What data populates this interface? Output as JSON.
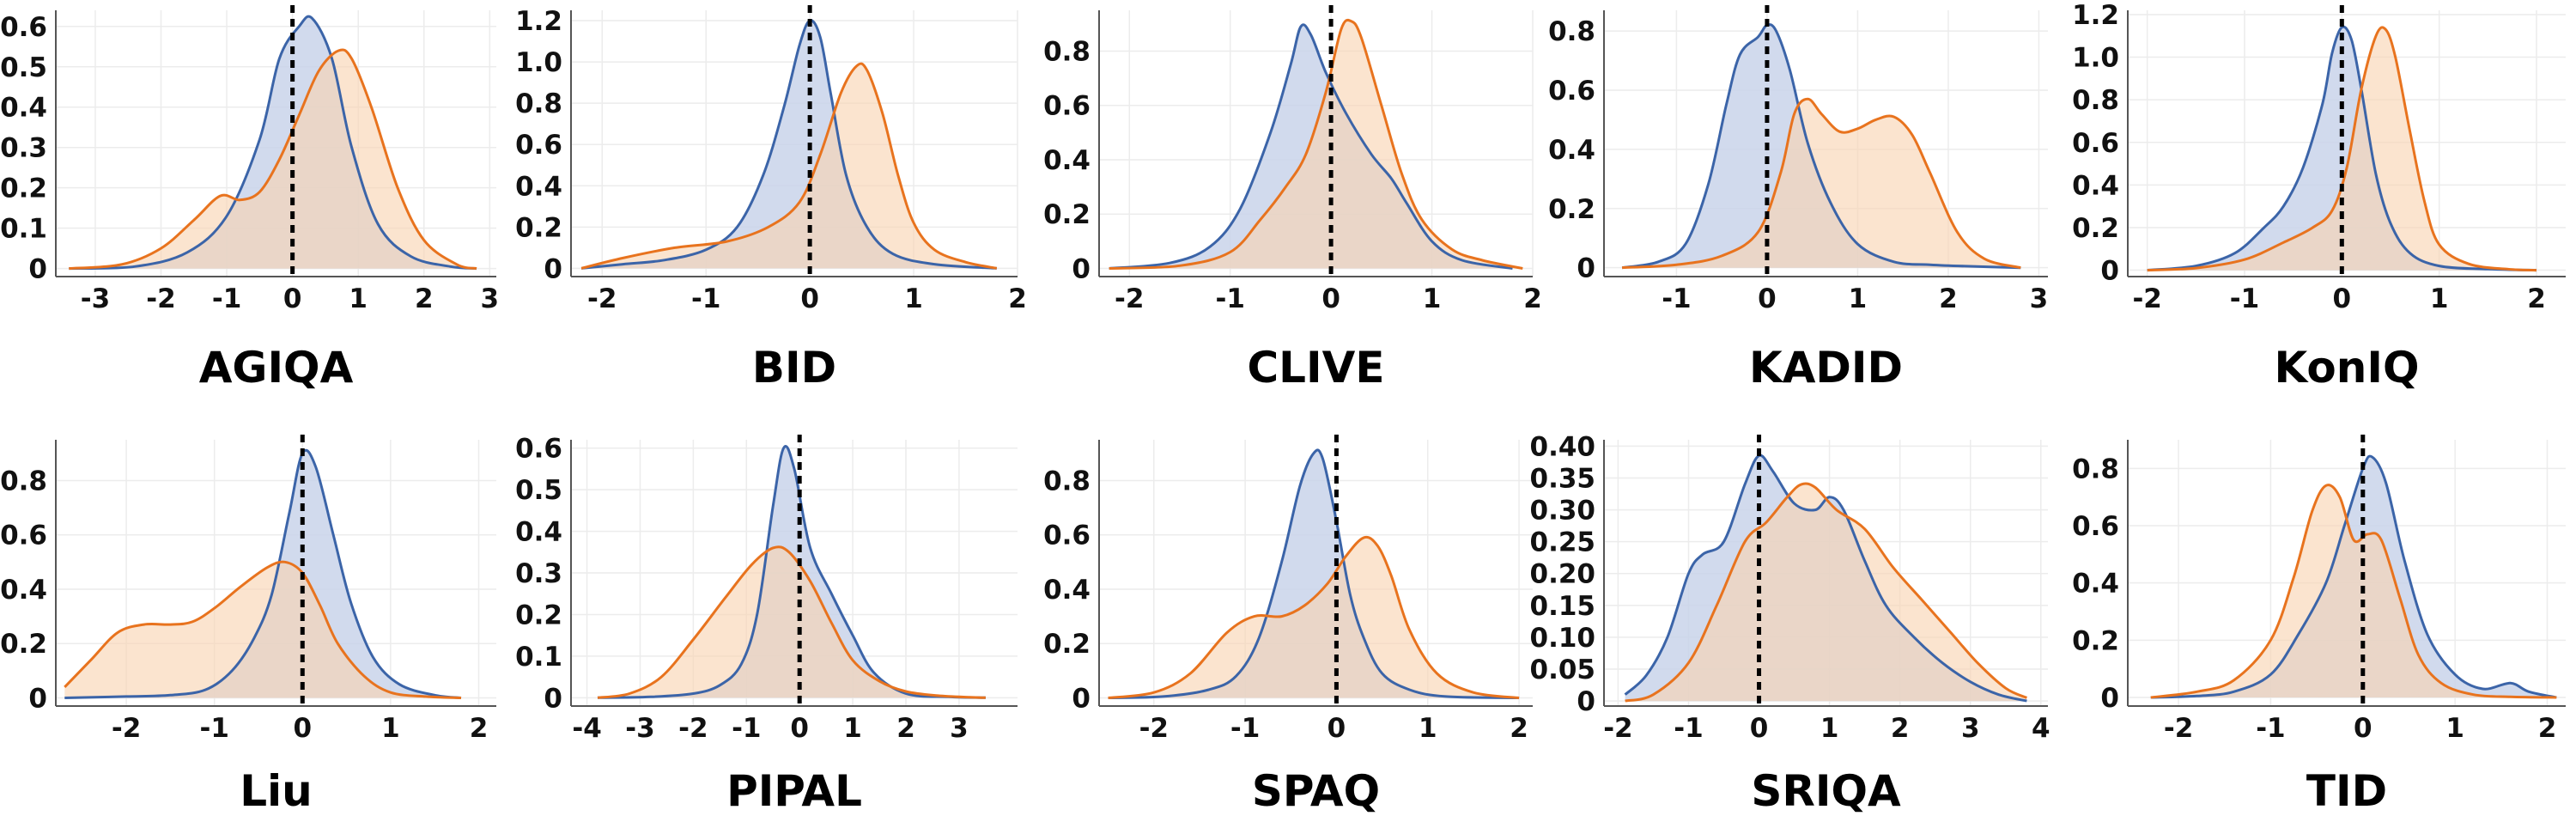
{
  "colors": {
    "blue": "#3b64a8",
    "blue_fill": "#c9d4ea",
    "orange": "#e8731e",
    "orange_fill": "#f8d3b2",
    "overlap": "#c6aca0"
  },
  "chart_data": [
    {
      "type": "area",
      "title": "AGIQA",
      "xlim": [
        -3.6,
        3.1
      ],
      "ylim": [
        -0.02,
        0.64
      ],
      "xticks": [
        -3,
        -2,
        -1,
        0,
        1,
        2,
        3
      ],
      "yticks": [
        0,
        0.1,
        0.2,
        0.3,
        0.4,
        0.5,
        0.6
      ],
      "ytick_labels": [
        "0",
        "0.1",
        "0.2",
        "0.3",
        "0.4",
        "0.5",
        "0.6"
      ],
      "blue": {
        "x": [
          -3.4,
          -2.4,
          -1.6,
          -1.0,
          -0.5,
          -0.2,
          0.1,
          0.3,
          0.6,
          0.9,
          1.3,
          1.8,
          2.4,
          2.8
        ],
        "y": [
          0,
          0.005,
          0.04,
          0.13,
          0.32,
          0.52,
          0.6,
          0.62,
          0.52,
          0.3,
          0.11,
          0.03,
          0.005,
          0
        ]
      },
      "orange": {
        "x": [
          -3.4,
          -2.6,
          -2.0,
          -1.5,
          -1.1,
          -0.8,
          -0.5,
          -0.2,
          0.1,
          0.4,
          0.7,
          0.9,
          1.2,
          1.6,
          2.0,
          2.5,
          2.8
        ],
        "y": [
          0,
          0.01,
          0.05,
          0.12,
          0.18,
          0.17,
          0.19,
          0.27,
          0.38,
          0.49,
          0.54,
          0.52,
          0.4,
          0.2,
          0.07,
          0.01,
          0
        ]
      }
    },
    {
      "type": "area",
      "title": "BID",
      "xlim": [
        -2.3,
        2.0
      ],
      "ylim": [
        -0.04,
        1.25
      ],
      "xticks": [
        -2,
        -1,
        0,
        1,
        2
      ],
      "yticks": [
        0,
        0.2,
        0.4,
        0.6,
        0.8,
        1.0,
        1.2
      ],
      "ytick_labels": [
        "0",
        "0.2",
        "0.4",
        "0.6",
        "0.8",
        "1.0",
        "1.2"
      ],
      "blue": {
        "x": [
          -2.2,
          -1.8,
          -1.4,
          -1.0,
          -0.7,
          -0.45,
          -0.25,
          -0.1,
          0.0,
          0.1,
          0.2,
          0.35,
          0.55,
          0.8,
          1.2,
          1.8
        ],
        "y": [
          0,
          0.02,
          0.04,
          0.09,
          0.2,
          0.45,
          0.78,
          1.08,
          1.2,
          1.12,
          0.85,
          0.45,
          0.2,
          0.07,
          0.02,
          0
        ]
      },
      "orange": {
        "x": [
          -2.2,
          -1.8,
          -1.3,
          -0.8,
          -0.4,
          -0.1,
          0.1,
          0.3,
          0.45,
          0.55,
          0.7,
          0.85,
          1.0,
          1.2,
          1.5,
          1.8
        ],
        "y": [
          0,
          0.05,
          0.1,
          0.13,
          0.2,
          0.32,
          0.55,
          0.85,
          0.98,
          0.96,
          0.75,
          0.45,
          0.22,
          0.09,
          0.03,
          0
        ]
      }
    },
    {
      "type": "area",
      "title": "CLIVE",
      "xlim": [
        -2.3,
        2.0
      ],
      "ylim": [
        -0.03,
        0.95
      ],
      "xticks": [
        -2,
        -1,
        0,
        1,
        2
      ],
      "yticks": [
        0,
        0.2,
        0.4,
        0.6,
        0.8
      ],
      "ytick_labels": [
        "0",
        "0.2",
        "0.4",
        "0.6",
        "0.8"
      ],
      "blue": {
        "x": [
          -2.2,
          -1.6,
          -1.2,
          -0.9,
          -0.6,
          -0.4,
          -0.3,
          -0.2,
          -0.05,
          0.15,
          0.4,
          0.6,
          0.75,
          1.0,
          1.3,
          1.8
        ],
        "y": [
          0,
          0.02,
          0.08,
          0.22,
          0.5,
          0.75,
          0.89,
          0.86,
          0.72,
          0.57,
          0.42,
          0.33,
          0.24,
          0.1,
          0.03,
          0
        ]
      },
      "orange": {
        "x": [
          -2.2,
          -1.5,
          -1.0,
          -0.7,
          -0.45,
          -0.25,
          -0.05,
          0.1,
          0.2,
          0.3,
          0.5,
          0.7,
          0.9,
          1.2,
          1.5,
          1.9
        ],
        "y": [
          0,
          0.01,
          0.06,
          0.18,
          0.3,
          0.42,
          0.65,
          0.88,
          0.91,
          0.85,
          0.6,
          0.35,
          0.18,
          0.07,
          0.03,
          0
        ]
      }
    },
    {
      "type": "area",
      "title": "KADID",
      "xlim": [
        -1.8,
        3.1
      ],
      "ylim": [
        -0.03,
        0.87
      ],
      "xticks": [
        -1,
        0,
        1,
        2,
        3
      ],
      "yticks": [
        0,
        0.2,
        0.4,
        0.6,
        0.8
      ],
      "ytick_labels": [
        "0",
        "0.2",
        "0.4",
        "0.6",
        "0.8"
      ],
      "blue": {
        "x": [
          -1.6,
          -1.2,
          -0.9,
          -0.65,
          -0.45,
          -0.3,
          -0.1,
          0.0,
          0.1,
          0.25,
          0.45,
          0.7,
          1.0,
          1.4,
          1.8,
          2.2,
          2.8
        ],
        "y": [
          0,
          0.02,
          0.08,
          0.28,
          0.55,
          0.72,
          0.78,
          0.82,
          0.8,
          0.67,
          0.42,
          0.22,
          0.08,
          0.02,
          0.01,
          0.005,
          0
        ]
      },
      "orange": {
        "x": [
          -1.6,
          -1.0,
          -0.5,
          -0.1,
          0.15,
          0.3,
          0.45,
          0.6,
          0.8,
          1.0,
          1.2,
          1.4,
          1.6,
          1.8,
          2.1,
          2.4,
          2.8
        ],
        "y": [
          0,
          0.01,
          0.04,
          0.12,
          0.32,
          0.52,
          0.57,
          0.52,
          0.46,
          0.47,
          0.5,
          0.51,
          0.45,
          0.32,
          0.12,
          0.03,
          0
        ]
      }
    },
    {
      "type": "area",
      "title": "KonIQ",
      "xlim": [
        -2.2,
        2.3
      ],
      "ylim": [
        -0.03,
        1.22
      ],
      "xticks": [
        -2,
        -1,
        0,
        1,
        2
      ],
      "yticks": [
        0,
        0.2,
        0.4,
        0.6,
        0.8,
        1.0,
        1.2
      ],
      "ytick_labels": [
        "0",
        "0.2",
        "0.4",
        "0.6",
        "0.8",
        "1.0",
        "1.2"
      ],
      "blue": {
        "x": [
          -2.0,
          -1.5,
          -1.1,
          -0.8,
          -0.6,
          -0.4,
          -0.2,
          -0.1,
          0.0,
          0.1,
          0.2,
          0.35,
          0.5,
          0.7,
          1.0,
          1.5,
          2.0
        ],
        "y": [
          0,
          0.02,
          0.08,
          0.2,
          0.3,
          0.48,
          0.78,
          1.02,
          1.14,
          1.08,
          0.85,
          0.45,
          0.22,
          0.08,
          0.02,
          0.005,
          0
        ]
      },
      "orange": {
        "x": [
          -2.0,
          -1.5,
          -1.0,
          -0.6,
          -0.3,
          -0.1,
          0.05,
          0.2,
          0.35,
          0.45,
          0.55,
          0.7,
          0.85,
          1.0,
          1.3,
          1.7,
          2.0
        ],
        "y": [
          0,
          0.01,
          0.05,
          0.13,
          0.2,
          0.28,
          0.48,
          0.85,
          1.1,
          1.13,
          1.0,
          0.65,
          0.32,
          0.12,
          0.03,
          0.005,
          0
        ]
      }
    },
    {
      "type": "area",
      "title": "Liu",
      "xlim": [
        -2.8,
        2.2
      ],
      "ylim": [
        -0.03,
        0.95
      ],
      "xticks": [
        -2,
        -1,
        0,
        1,
        2
      ],
      "yticks": [
        0,
        0.2,
        0.4,
        0.6,
        0.8
      ],
      "ytick_labels": [
        "0",
        "0.2",
        "0.4",
        "0.6",
        "0.8"
      ],
      "blue": {
        "x": [
          -2.7,
          -2.0,
          -1.5,
          -1.1,
          -0.8,
          -0.55,
          -0.35,
          -0.15,
          0.0,
          0.15,
          0.35,
          0.55,
          0.8,
          1.1,
          1.5,
          1.8
        ],
        "y": [
          0,
          0.005,
          0.01,
          0.03,
          0.1,
          0.22,
          0.38,
          0.68,
          0.9,
          0.85,
          0.6,
          0.35,
          0.15,
          0.05,
          0.01,
          0
        ]
      },
      "orange": {
        "x": [
          -2.7,
          -2.4,
          -2.1,
          -1.8,
          -1.5,
          -1.25,
          -1.0,
          -0.7,
          -0.4,
          -0.2,
          0.0,
          0.2,
          0.4,
          0.7,
          1.0,
          1.4,
          1.8
        ],
        "y": [
          0.04,
          0.14,
          0.24,
          0.27,
          0.27,
          0.28,
          0.33,
          0.41,
          0.48,
          0.5,
          0.46,
          0.34,
          0.2,
          0.08,
          0.02,
          0.005,
          0
        ]
      }
    },
    {
      "type": "area",
      "title": "PIPAL",
      "xlim": [
        -4.3,
        4.1
      ],
      "ylim": [
        -0.02,
        0.62
      ],
      "xticks": [
        -4,
        -3,
        -2,
        -1,
        0,
        1,
        2,
        3
      ],
      "yticks": [
        0,
        0.1,
        0.2,
        0.3,
        0.4,
        0.5,
        0.6
      ],
      "ytick_labels": [
        "0",
        "0.1",
        "0.2",
        "0.3",
        "0.4",
        "0.5",
        "0.6"
      ],
      "blue": {
        "x": [
          -3.8,
          -2.8,
          -2.0,
          -1.5,
          -1.1,
          -0.8,
          -0.5,
          -0.3,
          -0.1,
          0.2,
          0.6,
          1.0,
          1.4,
          2.0,
          2.8,
          3.5
        ],
        "y": [
          0,
          0.002,
          0.01,
          0.03,
          0.08,
          0.2,
          0.46,
          0.6,
          0.55,
          0.36,
          0.25,
          0.15,
          0.06,
          0.01,
          0.002,
          0
        ]
      },
      "orange": {
        "x": [
          -3.8,
          -3.2,
          -2.6,
          -2.0,
          -1.4,
          -0.9,
          -0.5,
          -0.2,
          0.2,
          0.6,
          1.0,
          1.5,
          2.0,
          2.6,
          3.2,
          3.5
        ],
        "y": [
          0,
          0.01,
          0.05,
          0.14,
          0.24,
          0.32,
          0.36,
          0.35,
          0.28,
          0.18,
          0.09,
          0.04,
          0.015,
          0.005,
          0.001,
          0
        ]
      }
    },
    {
      "type": "area",
      "title": "SPAQ",
      "xlim": [
        -2.6,
        2.15
      ],
      "ylim": [
        -0.03,
        0.95
      ],
      "xticks": [
        -2,
        -1,
        0,
        1,
        2
      ],
      "yticks": [
        0,
        0.2,
        0.4,
        0.6,
        0.8
      ],
      "ytick_labels": [
        "0",
        "0.2",
        "0.4",
        "0.6",
        "0.8"
      ],
      "blue": {
        "x": [
          -2.5,
          -1.9,
          -1.4,
          -1.1,
          -0.85,
          -0.6,
          -0.4,
          -0.25,
          -0.15,
          0.0,
          0.15,
          0.3,
          0.5,
          0.8,
          1.2,
          2.0
        ],
        "y": [
          0,
          0.005,
          0.03,
          0.08,
          0.22,
          0.5,
          0.78,
          0.9,
          0.88,
          0.65,
          0.38,
          0.22,
          0.09,
          0.03,
          0.005,
          0
        ]
      },
      "orange": {
        "x": [
          -2.5,
          -2.0,
          -1.6,
          -1.2,
          -0.9,
          -0.6,
          -0.35,
          -0.1,
          0.1,
          0.3,
          0.45,
          0.6,
          0.8,
          1.1,
          1.5,
          2.0
        ],
        "y": [
          0,
          0.02,
          0.09,
          0.24,
          0.3,
          0.3,
          0.34,
          0.42,
          0.52,
          0.59,
          0.56,
          0.45,
          0.25,
          0.09,
          0.02,
          0
        ]
      }
    },
    {
      "type": "area",
      "title": "SRIQA",
      "xlim": [
        -2.2,
        4.1
      ],
      "ylim": [
        -0.008,
        0.41
      ],
      "xticks": [
        -2,
        -1,
        0,
        1,
        2,
        3,
        4
      ],
      "yticks": [
        0,
        0.05,
        0.1,
        0.15,
        0.2,
        0.25,
        0.3,
        0.35,
        0.4
      ],
      "ytick_labels": [
        "0",
        "0.05",
        "0.10",
        "0.15",
        "0.20",
        "0.25",
        "0.30",
        "0.35",
        "0.40"
      ],
      "blue": {
        "x": [
          -1.9,
          -1.6,
          -1.3,
          -1.0,
          -0.8,
          -0.5,
          -0.2,
          0.0,
          0.2,
          0.5,
          0.8,
          1.0,
          1.2,
          1.5,
          1.8,
          2.2,
          2.6,
          3.0,
          3.4,
          3.8
        ],
        "y": [
          0.01,
          0.04,
          0.1,
          0.2,
          0.23,
          0.25,
          0.34,
          0.385,
          0.36,
          0.31,
          0.3,
          0.32,
          0.3,
          0.22,
          0.15,
          0.1,
          0.06,
          0.03,
          0.01,
          0
        ]
      },
      "orange": {
        "x": [
          -1.9,
          -1.5,
          -1.0,
          -0.6,
          -0.2,
          0.1,
          0.4,
          0.6,
          0.8,
          1.1,
          1.5,
          1.9,
          2.3,
          2.7,
          3.1,
          3.5,
          3.8
        ],
        "y": [
          0,
          0.01,
          0.06,
          0.15,
          0.25,
          0.28,
          0.32,
          0.34,
          0.335,
          0.3,
          0.27,
          0.21,
          0.16,
          0.11,
          0.06,
          0.02,
          0.005
        ]
      }
    },
    {
      "type": "area",
      "title": "TID",
      "xlim": [
        -2.55,
        2.2
      ],
      "ylim": [
        -0.03,
        0.9
      ],
      "xticks": [
        -2,
        -1,
        0,
        1,
        2
      ],
      "yticks": [
        0,
        0.2,
        0.4,
        0.6,
        0.8
      ],
      "ytick_labels": [
        "0",
        "0.2",
        "0.4",
        "0.6",
        "0.8"
      ],
      "blue": {
        "x": [
          -2.3,
          -1.8,
          -1.4,
          -1.0,
          -0.7,
          -0.4,
          -0.2,
          0.0,
          0.1,
          0.25,
          0.45,
          0.7,
          1.0,
          1.3,
          1.6,
          1.8,
          2.1
        ],
        "y": [
          0,
          0.005,
          0.02,
          0.08,
          0.22,
          0.4,
          0.6,
          0.8,
          0.84,
          0.75,
          0.48,
          0.22,
          0.08,
          0.03,
          0.05,
          0.02,
          0
        ]
      },
      "orange": {
        "x": [
          -2.3,
          -1.8,
          -1.4,
          -1.0,
          -0.75,
          -0.55,
          -0.4,
          -0.25,
          -0.1,
          0.05,
          0.2,
          0.4,
          0.6,
          0.85,
          1.2,
          1.6,
          2.1
        ],
        "y": [
          0,
          0.02,
          0.06,
          0.2,
          0.42,
          0.65,
          0.74,
          0.7,
          0.55,
          0.57,
          0.55,
          0.35,
          0.15,
          0.05,
          0.01,
          0.002,
          0
        ]
      }
    }
  ]
}
